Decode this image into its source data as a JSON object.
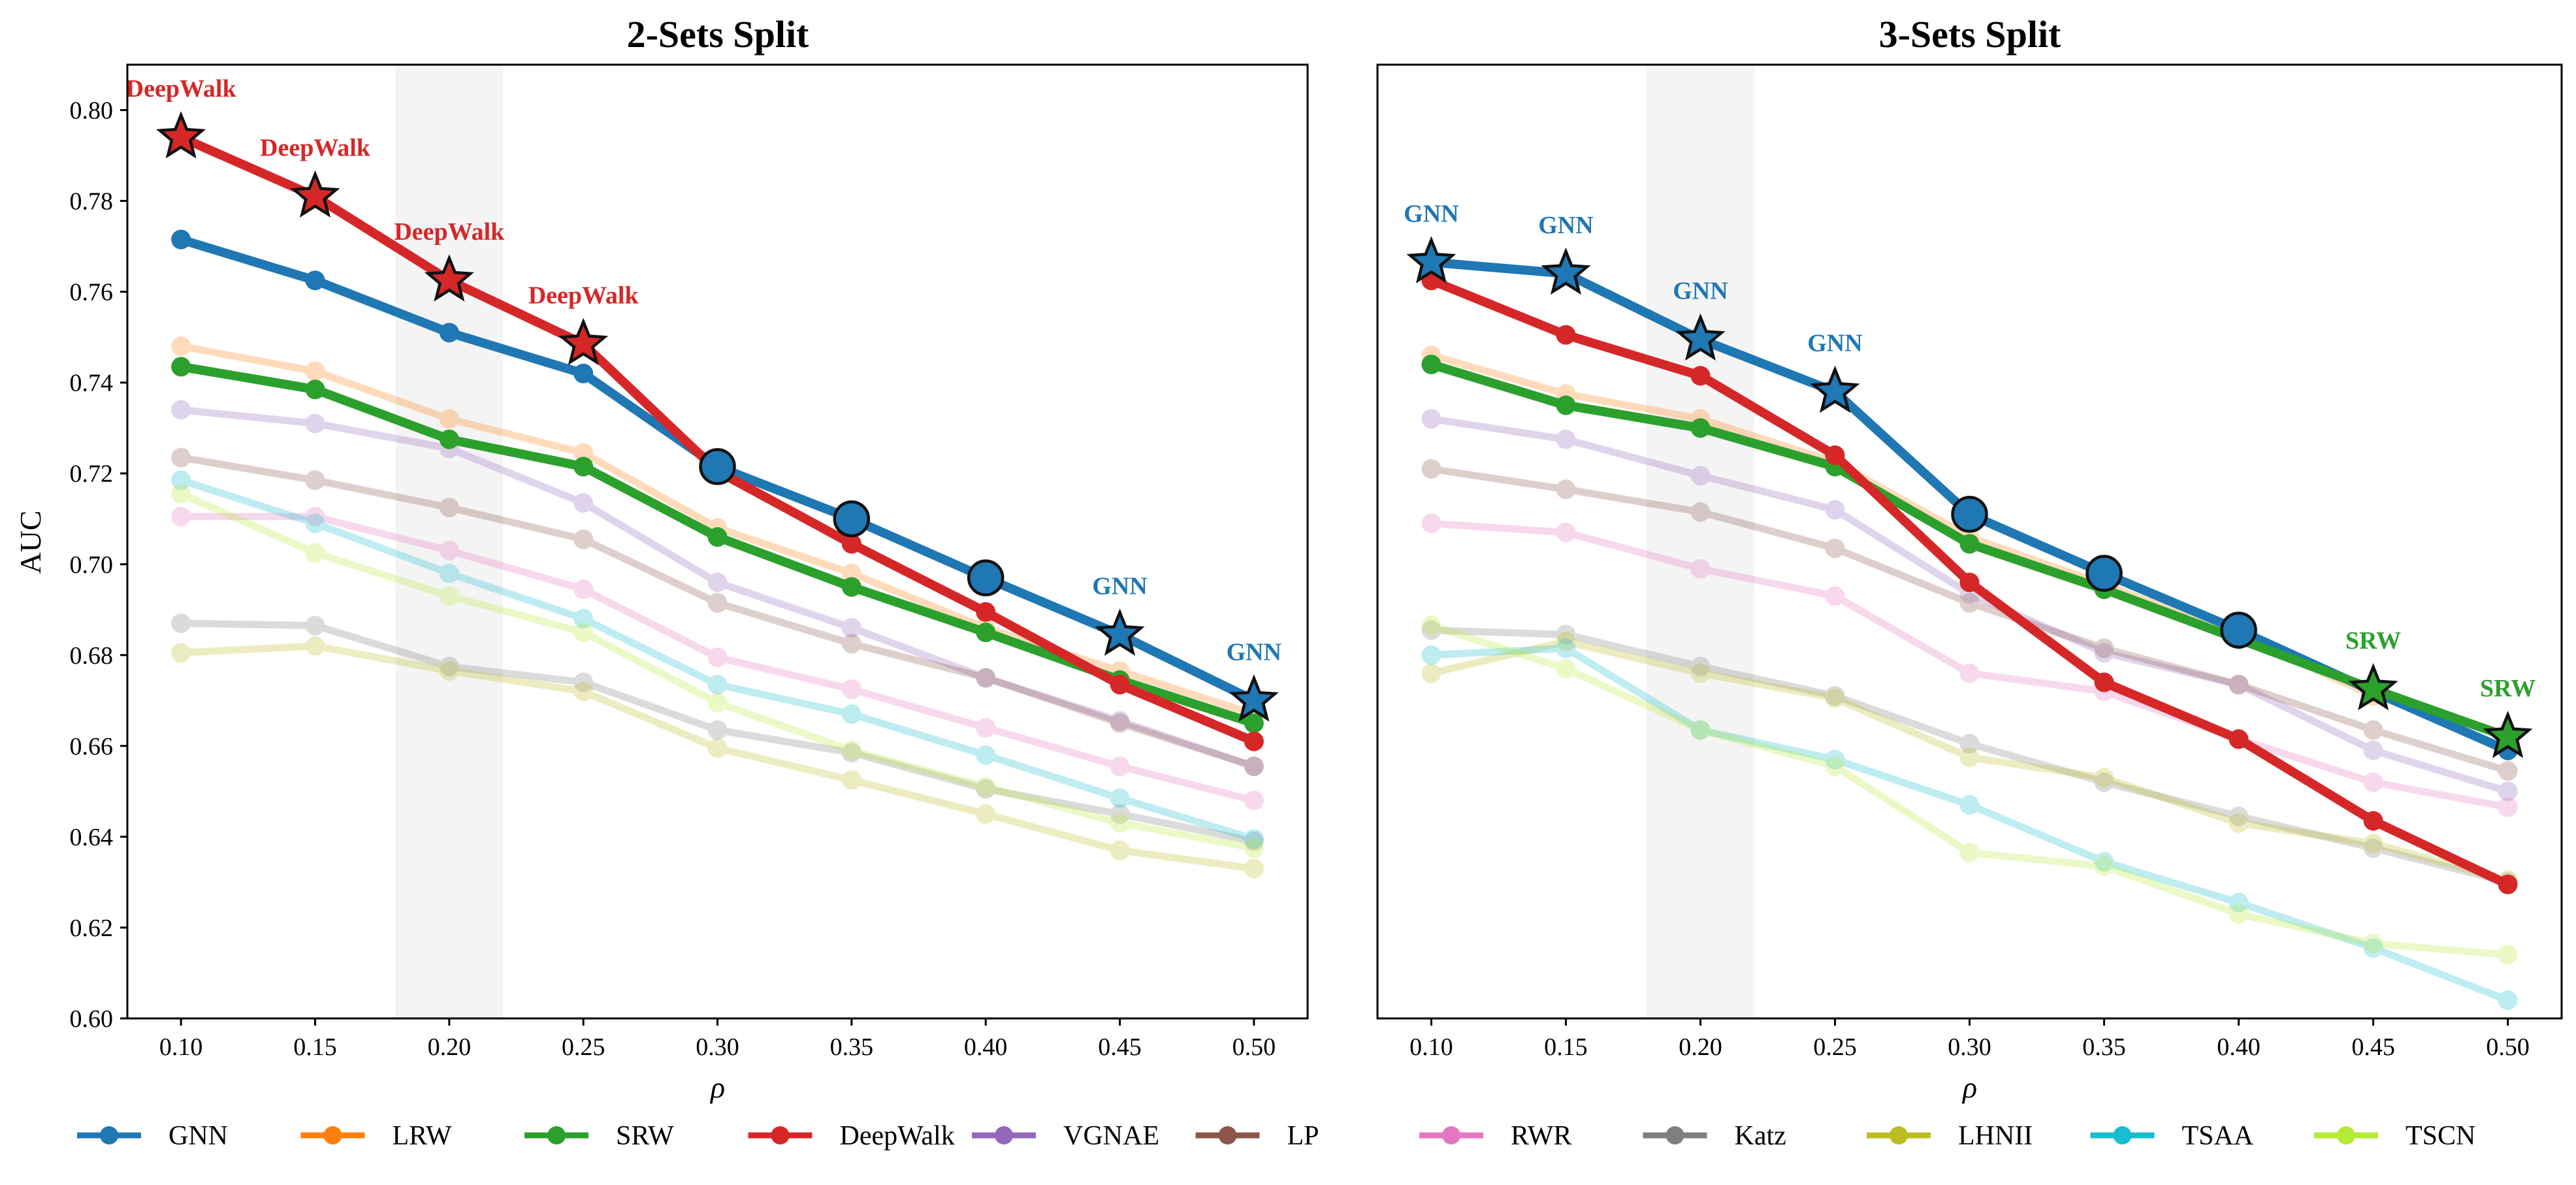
{
  "chart_data": [
    {
      "type": "line",
      "title": "2-Sets Split",
      "xlabel": "ρ",
      "ylabel": "AUC",
      "x": [
        0.1,
        0.15,
        0.2,
        0.25,
        0.3,
        0.35,
        0.4,
        0.45,
        0.5
      ],
      "x_tick_labels": [
        "0.10",
        "0.15",
        "0.20",
        "0.25",
        "0.30",
        "0.35",
        "0.40",
        "0.45",
        "0.50"
      ],
      "xlim": [
        0.08,
        0.52
      ],
      "ylim": [
        0.6,
        0.81
      ],
      "y_ticks": [
        0.6,
        0.62,
        0.64,
        0.66,
        0.68,
        0.7,
        0.72,
        0.74,
        0.76,
        0.78,
        0.8
      ],
      "y_tick_labels": [
        "0.60",
        "0.62",
        "0.64",
        "0.66",
        "0.68",
        "0.70",
        "0.72",
        "0.74",
        "0.76",
        "0.78",
        "0.80"
      ],
      "shaded_region": [
        0.18,
        0.22
      ],
      "series": [
        {
          "name": "GNN",
          "values": [
            0.7715,
            0.7625,
            0.751,
            0.742,
            0.7215,
            0.71,
            0.697,
            0.6845,
            0.67
          ],
          "highlight": true
        },
        {
          "name": "LRW",
          "values": [
            0.748,
            0.7425,
            0.732,
            0.7245,
            0.708,
            0.698,
            0.686,
            0.6765,
            0.667
          ],
          "highlight": false
        },
        {
          "name": "SRW",
          "values": [
            0.7435,
            0.7385,
            0.7275,
            0.7215,
            0.706,
            0.695,
            0.685,
            0.6745,
            0.665
          ],
          "highlight": true
        },
        {
          "name": "DeepWalk",
          "values": [
            0.794,
            0.781,
            0.7625,
            0.7485,
            0.7205,
            0.7045,
            0.6895,
            0.6735,
            0.661
          ],
          "highlight": true
        },
        {
          "name": "VGNAE",
          "values": [
            0.734,
            0.731,
            0.7255,
            0.7135,
            0.696,
            0.686,
            0.675,
            0.6655,
            0.6555
          ],
          "highlight": false
        },
        {
          "name": "LP",
          "values": [
            0.7235,
            0.7185,
            0.7125,
            0.7055,
            0.6915,
            0.6825,
            0.675,
            0.665,
            0.6555
          ],
          "highlight": false
        },
        {
          "name": "RWR",
          "values": [
            0.7105,
            0.7105,
            0.703,
            0.6945,
            0.6795,
            0.6725,
            0.664,
            0.6555,
            0.648
          ],
          "highlight": false
        },
        {
          "name": "Katz",
          "values": [
            0.687,
            0.6865,
            0.6775,
            0.674,
            0.6635,
            0.6585,
            0.6505,
            0.645,
            0.639
          ],
          "highlight": false
        },
        {
          "name": "LHNII",
          "values": [
            0.6805,
            0.682,
            0.6765,
            0.672,
            0.6595,
            0.6525,
            0.645,
            0.637,
            0.633
          ],
          "highlight": false
        },
        {
          "name": "TSAA",
          "values": [
            0.7185,
            0.709,
            0.698,
            0.688,
            0.6735,
            0.667,
            0.658,
            0.6485,
            0.6395
          ],
          "highlight": false
        },
        {
          "name": "TSCN",
          "values": [
            0.7155,
            0.7025,
            0.693,
            0.685,
            0.6695,
            0.659,
            0.651,
            0.643,
            0.6375
          ],
          "highlight": false
        }
      ],
      "best_markers": [
        {
          "x": 0.1,
          "y": 0.794,
          "series": "DeepWalk",
          "marker": "star",
          "label": "DeepWalk"
        },
        {
          "x": 0.15,
          "y": 0.781,
          "series": "DeepWalk",
          "marker": "star",
          "label": "DeepWalk"
        },
        {
          "x": 0.2,
          "y": 0.7625,
          "series": "DeepWalk",
          "marker": "star",
          "label": "DeepWalk"
        },
        {
          "x": 0.25,
          "y": 0.7485,
          "series": "DeepWalk",
          "marker": "star",
          "label": "DeepWalk"
        },
        {
          "x": 0.3,
          "y": 0.7215,
          "series": "GNN",
          "marker": "circle",
          "label": ""
        },
        {
          "x": 0.35,
          "y": 0.71,
          "series": "GNN",
          "marker": "circle",
          "label": ""
        },
        {
          "x": 0.4,
          "y": 0.697,
          "series": "GNN",
          "marker": "circle",
          "label": ""
        },
        {
          "x": 0.45,
          "y": 0.6845,
          "series": "GNN",
          "marker": "star",
          "label": "GNN"
        },
        {
          "x": 0.5,
          "y": 0.67,
          "series": "GNN",
          "marker": "star",
          "label": "GNN"
        }
      ]
    },
    {
      "type": "line",
      "title": "3-Sets Split",
      "xlabel": "ρ",
      "ylabel": "",
      "x": [
        0.1,
        0.15,
        0.2,
        0.25,
        0.3,
        0.35,
        0.4,
        0.45,
        0.5
      ],
      "x_tick_labels": [
        "0.10",
        "0.15",
        "0.20",
        "0.25",
        "0.30",
        "0.35",
        "0.40",
        "0.45",
        "0.50"
      ],
      "xlim": [
        0.08,
        0.52
      ],
      "ylim": [
        0.6,
        0.81
      ],
      "y_ticks": [],
      "y_tick_labels": [],
      "shaded_region": [
        0.18,
        0.22
      ],
      "series": [
        {
          "name": "GNN",
          "values": [
            0.7665,
            0.764,
            0.7495,
            0.738,
            0.711,
            0.698,
            0.6855,
            0.672,
            0.659
          ],
          "highlight": true
        },
        {
          "name": "LRW",
          "values": [
            0.746,
            0.7375,
            0.732,
            0.7225,
            0.706,
            0.6955,
            0.6845,
            0.671,
            0.6625
          ],
          "highlight": false
        },
        {
          "name": "SRW",
          "values": [
            0.744,
            0.735,
            0.73,
            0.7215,
            0.7045,
            0.6945,
            0.6835,
            0.6725,
            0.662
          ],
          "highlight": true
        },
        {
          "name": "DeepWalk",
          "values": [
            0.7625,
            0.7505,
            0.7415,
            0.724,
            0.696,
            0.674,
            0.6615,
            0.6435,
            0.6295
          ],
          "highlight": true
        },
        {
          "name": "VGNAE",
          "values": [
            0.732,
            0.7275,
            0.7195,
            0.712,
            0.6935,
            0.6805,
            0.6735,
            0.659,
            0.65
          ],
          "highlight": false
        },
        {
          "name": "LP",
          "values": [
            0.721,
            0.7165,
            0.7115,
            0.7035,
            0.6915,
            0.6815,
            0.6735,
            0.6635,
            0.6545
          ],
          "highlight": false
        },
        {
          "name": "RWR",
          "values": [
            0.709,
            0.707,
            0.699,
            0.693,
            0.676,
            0.672,
            0.6615,
            0.652,
            0.6465
          ],
          "highlight": false
        },
        {
          "name": "Katz",
          "values": [
            0.6855,
            0.6845,
            0.6775,
            0.671,
            0.6605,
            0.652,
            0.6445,
            0.6375,
            0.63
          ],
          "highlight": false
        },
        {
          "name": "LHNII",
          "values": [
            0.676,
            0.683,
            0.676,
            0.6705,
            0.6575,
            0.653,
            0.643,
            0.6385,
            0.6305
          ],
          "highlight": false
        },
        {
          "name": "TSAA",
          "values": [
            0.68,
            0.6815,
            0.6635,
            0.657,
            0.647,
            0.6345,
            0.6255,
            0.6155,
            0.604
          ],
          "highlight": false
        },
        {
          "name": "TSCN",
          "values": [
            0.6865,
            0.677,
            0.6635,
            0.6555,
            0.6365,
            0.6335,
            0.623,
            0.6165,
            0.614
          ],
          "highlight": false
        }
      ],
      "best_markers": [
        {
          "x": 0.1,
          "y": 0.7665,
          "series": "GNN",
          "marker": "star",
          "label": "GNN"
        },
        {
          "x": 0.15,
          "y": 0.764,
          "series": "GNN",
          "marker": "star",
          "label": "GNN"
        },
        {
          "x": 0.2,
          "y": 0.7495,
          "series": "GNN",
          "marker": "star",
          "label": "GNN"
        },
        {
          "x": 0.25,
          "y": 0.738,
          "series": "GNN",
          "marker": "star",
          "label": "GNN"
        },
        {
          "x": 0.3,
          "y": 0.711,
          "series": "GNN",
          "marker": "circle",
          "label": ""
        },
        {
          "x": 0.35,
          "y": 0.698,
          "series": "GNN",
          "marker": "circle",
          "label": ""
        },
        {
          "x": 0.4,
          "y": 0.6855,
          "series": "GNN",
          "marker": "circle",
          "label": ""
        },
        {
          "x": 0.45,
          "y": 0.6725,
          "series": "SRW",
          "marker": "star",
          "label": "SRW"
        },
        {
          "x": 0.5,
          "y": 0.662,
          "series": "SRW",
          "marker": "star",
          "label": "SRW"
        }
      ]
    }
  ],
  "legend": {
    "placement": "bottom",
    "entries": [
      "GNN",
      "LRW",
      "SRW",
      "DeepWalk",
      "VGNAE",
      "LP",
      "RWR",
      "Katz",
      "LHNII",
      "TSAA",
      "TSCN"
    ]
  },
  "colors": {
    "GNN": "#1f77b4",
    "LRW": "#ff7f0e",
    "SRW": "#2ca02c",
    "DeepWalk": "#d62728",
    "VGNAE": "#9467bd",
    "LP": "#8c564b",
    "RWR": "#e377c2",
    "Katz": "#7f7f7f",
    "LHNII": "#bcbd22",
    "TSAA": "#17becf",
    "TSCN": "#b5ea36"
  }
}
